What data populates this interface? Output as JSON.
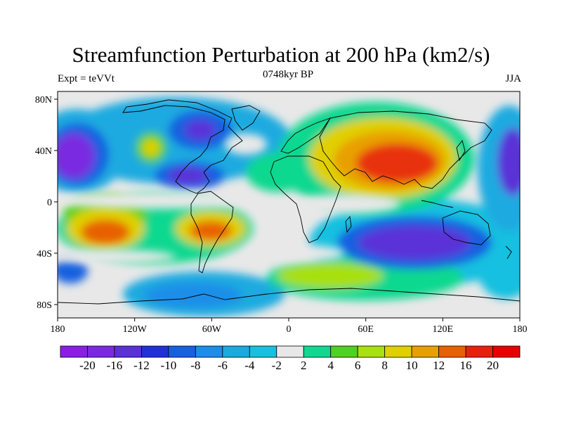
{
  "header": {
    "title": "Streamfunction Perturbation at 200 hPa (km2/s)",
    "left_label": "Expt = teVVt",
    "center_label": "0748kyr BP",
    "right_label": "JJA"
  },
  "axes": {
    "lon_ticks": [
      "180",
      "120W",
      "60W",
      "0",
      "60E",
      "120E",
      "180"
    ],
    "lat_ticks": [
      "80N",
      "40N",
      "0",
      "40S",
      "80S"
    ]
  },
  "colorbar": {
    "labels": [
      "-20",
      "-16",
      "-12",
      "-10",
      "-8",
      "-6",
      "-4",
      "-2",
      "2",
      "4",
      "6",
      "8",
      "10",
      "12",
      "16",
      "20"
    ],
    "colors": [
      "#8a1ee6",
      "#7a2ae0",
      "#5a30d8",
      "#2030d8",
      "#1860e0",
      "#1a8ee8",
      "#1aaae0",
      "#18c0e0",
      "#e8e8e8",
      "#10d890",
      "#50d020",
      "#a8e010",
      "#e0d000",
      "#e8a000",
      "#e86000",
      "#e82010",
      "#e80000"
    ]
  }
}
